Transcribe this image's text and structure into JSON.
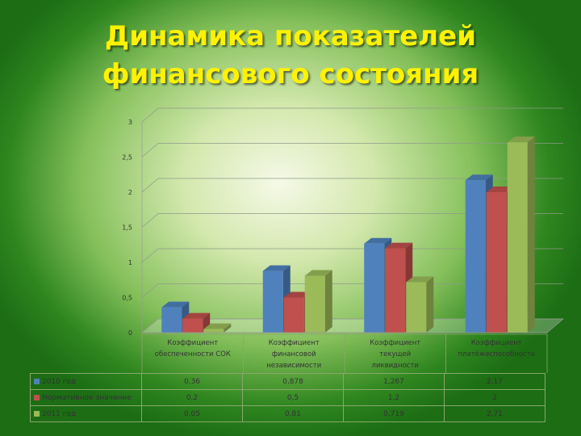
{
  "title": {
    "line1": "Динамика показателей",
    "line2": "финансового состояния"
  },
  "chart_data": {
    "type": "bar",
    "style": "3d-clustered-column",
    "categories": [
      [
        "Коэффициент",
        "обеспеченности СОК"
      ],
      [
        "Коэффициент",
        "финансовой",
        "независимости"
      ],
      [
        "Коэффициент",
        "текущей",
        "ликвидности"
      ],
      [
        "Коэффициент",
        "платёжеспособности"
      ]
    ],
    "series": [
      {
        "name": "2010 год",
        "values": [
          0.36,
          0.878,
          1.267,
          2.17
        ],
        "labels": [
          "0,36",
          "0,878",
          "1,267",
          "2,17"
        ],
        "color": "#4f81bd"
      },
      {
        "name": "Нормативное значение",
        "values": [
          0.2,
          0.5,
          1.2,
          2
        ],
        "labels": [
          "0,2",
          "0,5",
          "1,2",
          "2"
        ],
        "color": "#c0504d"
      },
      {
        "name": "2011 год",
        "values": [
          0.05,
          0.81,
          0.719,
          2.71
        ],
        "labels": [
          "0,05",
          "0,81",
          "0,719",
          "2,71"
        ],
        "color": "#9bbb59"
      }
    ],
    "ylim": [
      0,
      3
    ],
    "yticks": [
      0,
      0.5,
      1,
      1.5,
      2,
      2.5,
      3
    ],
    "ytick_labels": [
      "0",
      "0,5",
      "1",
      "1,5",
      "2",
      "2,5",
      "3"
    ],
    "grid": true,
    "legend": "data-table-below"
  }
}
